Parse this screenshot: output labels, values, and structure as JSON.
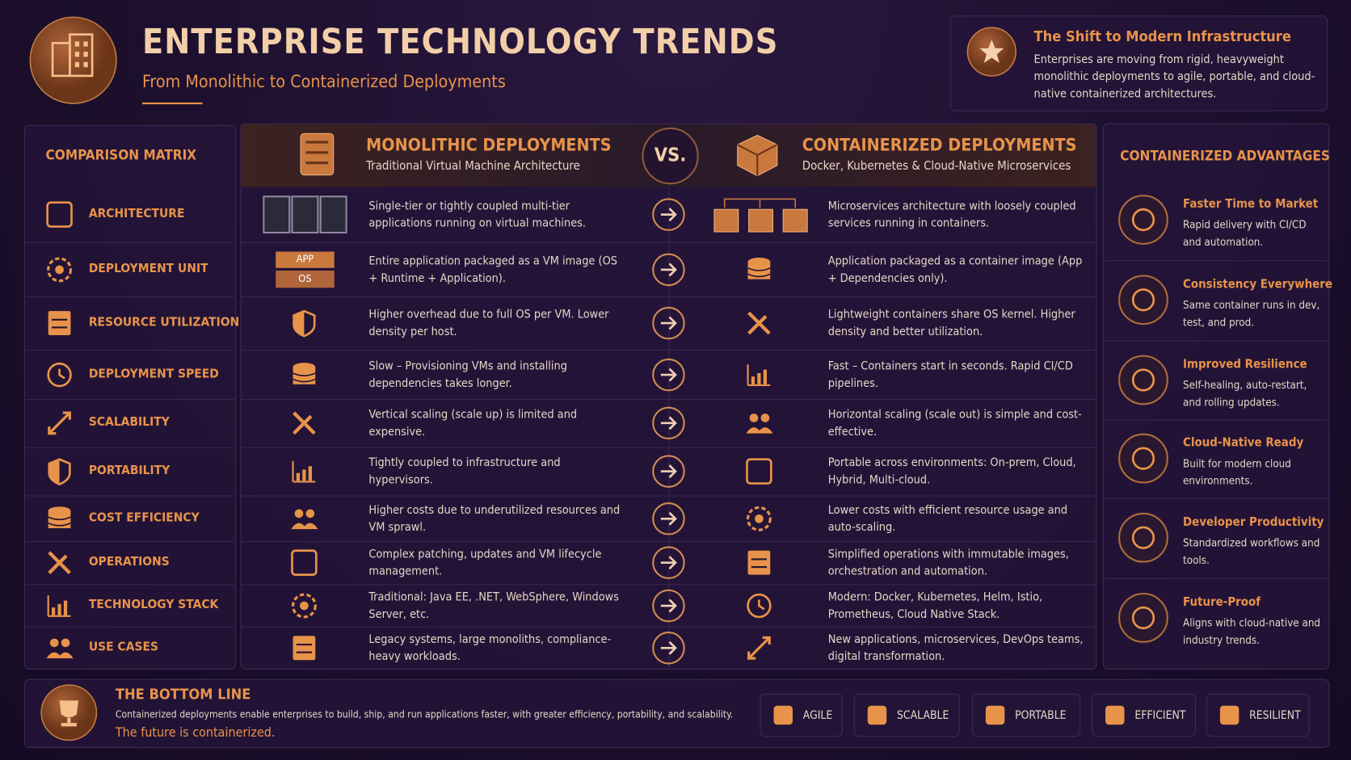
{
  "header": {
    "title": "ENTERPRISE TECHNOLOGY TRENDS",
    "subtitle": "From Monolithic to Containerized Deployments"
  },
  "callout": {
    "title": "The Shift to Modern Infrastructure",
    "text": "Enterprises are moving from rigid, heavyweight monolithic deployments to agile, portable, and cloud-native containerized architectures."
  },
  "matrix": {
    "heading": "COMPARISON MATRIX",
    "rows": [
      "ARCHITECTURE",
      "DEPLOYMENT UNIT",
      "RESOURCE UTILIZATION",
      "DEPLOYMENT SPEED",
      "SCALABILITY",
      "PORTABILITY",
      "COST EFFICIENCY",
      "OPERATIONS",
      "TECHNOLOGY STACK",
      "USE CASES"
    ]
  },
  "monolithic": {
    "title": "MONOLITHIC DEPLOYMENTS",
    "subtitle": "Traditional Virtual Machine Architecture",
    "icon_labels": [
      "APP",
      "OS"
    ],
    "rows": [
      "Single-tier or tightly coupled multi-tier applications running on virtual machines.",
      "Entire application packaged as a VM image (OS + Runtime + Application).",
      "Higher overhead due to full OS per VM. Lower density per host.",
      "Slow – Provisioning VMs and installing dependencies takes longer.",
      "Vertical scaling (scale up) is limited and expensive.",
      "Tightly coupled to infrastructure and hypervisors.",
      "Higher costs due to underutilized resources and VM sprawl.",
      "Complex patching, updates and VM lifecycle management.",
      "Traditional: Java EE, .NET, WebSphere, Windows Server, etc.",
      "Legacy systems, large monoliths, compliance-heavy workloads."
    ]
  },
  "versus": "VS.",
  "containerized": {
    "title": "CONTAINERIZED DEPLOYMENTS",
    "subtitle": "Docker, Kubernetes & Cloud-Native Microservices",
    "rows": [
      "Microservices architecture with loosely coupled services running in containers.",
      "Application packaged as a container image (App + Dependencies only).",
      "Lightweight containers share OS kernel. Higher density and better utilization.",
      "Fast – Containers start in seconds. Rapid CI/CD pipelines.",
      "Horizontal scaling (scale out) is simple and cost-effective.",
      "Portable across environments: On-prem, Cloud, Hybrid, Multi-cloud.",
      "Lower costs with efficient resource usage and auto-scaling.",
      "Simplified operations with immutable images, orchestration and automation.",
      "Modern: Docker, Kubernetes, Helm, Istio, Prometheus, Cloud Native Stack.",
      "New applications, microservices, DevOps teams, digital transformation."
    ]
  },
  "advantages": {
    "heading": "CONTAINERIZED ADVANTAGES",
    "items": [
      {
        "title": "Faster Time to Market",
        "text": "Rapid delivery with CI/CD and automation."
      },
      {
        "title": "Consistency Everywhere",
        "text": "Same container runs in dev, test, and prod."
      },
      {
        "title": "Improved Resilience",
        "text": "Self-healing, auto-restart, and rolling updates."
      },
      {
        "title": "Cloud-Native Ready",
        "text": "Built for modern cloud environments."
      },
      {
        "title": "Developer Productivity",
        "text": "Standardized workflows and tools."
      },
      {
        "title": "Future-Proof",
        "text": "Aligns with cloud-native and industry trends."
      }
    ]
  },
  "bottom": {
    "title": "THE BOTTOM LINE",
    "text": "Containerized deployments enable enterprises to build, ship, and run applications faster, with greater efficiency, portability, and scalability.",
    "tagline": "The future is containerized.",
    "badges": [
      "AGILE",
      "SCALABLE",
      "PORTABLE",
      "EFFICIENT",
      "RESILIENT"
    ]
  }
}
